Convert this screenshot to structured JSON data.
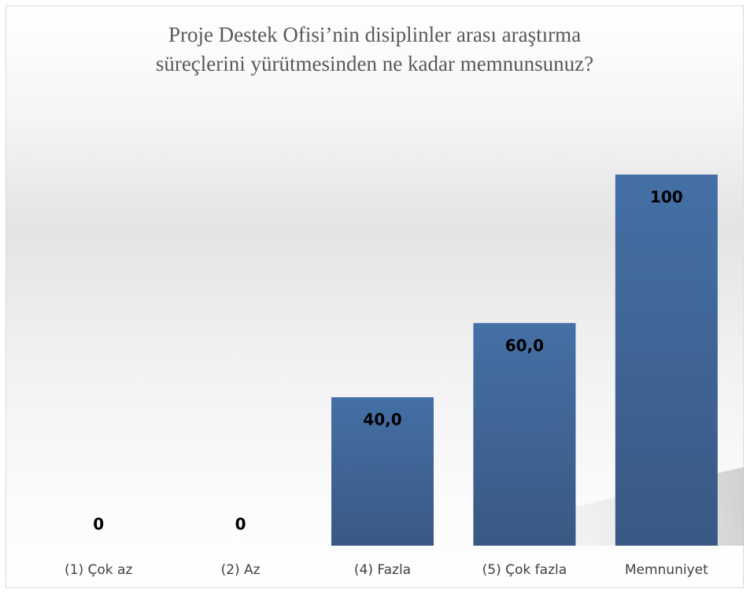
{
  "chart_data": {
    "type": "bar",
    "title": [
      "Proje Destek Ofisi’nin disiplinler arası araştırma",
      "süreçlerini yürütmesinden ne kadar memnunsunuz?"
    ],
    "categories": [
      "(1) Çok az",
      "(2) Az",
      "(4) Fazla",
      "(5) Çok fazla",
      "Memnuniyet"
    ],
    "values": [
      0,
      0,
      40,
      60,
      100
    ],
    "value_labels": [
      "0",
      "0",
      "40,0",
      "60,0",
      "100"
    ],
    "color": "#41679c"
  }
}
